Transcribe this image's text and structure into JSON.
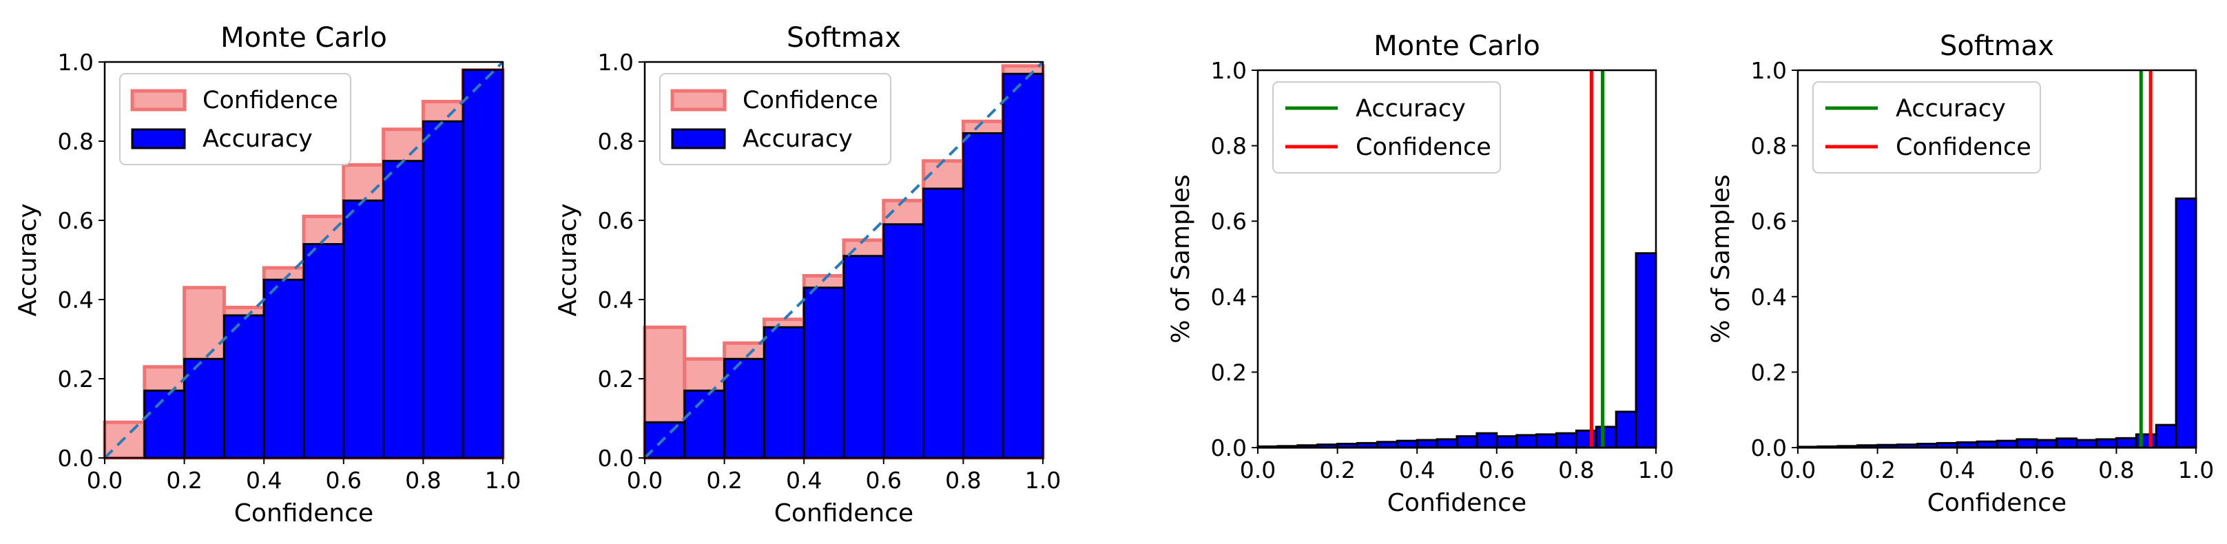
{
  "chart_data": [
    {
      "type": "reliability-diagram",
      "title": "Monte Carlo",
      "xlabel": "Confidence",
      "ylabel": "Accuracy",
      "xlim": [
        0.0,
        1.0
      ],
      "ylim": [
        0.0,
        1.0
      ],
      "xticks": [
        "0.0",
        "0.2",
        "0.4",
        "0.6",
        "0.8",
        "1.0"
      ],
      "yticks": [
        "0.0",
        "0.2",
        "0.4",
        "0.6",
        "0.8",
        "1.0"
      ],
      "bin_edges": [
        0.0,
        0.1,
        0.2,
        0.3,
        0.4,
        0.5,
        0.6,
        0.7,
        0.8,
        0.9,
        1.0
      ],
      "series": [
        {
          "name": "Confidence",
          "color": "#f7a6a6",
          "edge": "#f07474",
          "values": [
            0.09,
            0.23,
            0.43,
            0.38,
            0.48,
            0.61,
            0.74,
            0.83,
            0.9,
            0.98
          ]
        },
        {
          "name": "Accuracy",
          "color": "#0000ff",
          "edge": "#000000",
          "values": [
            0.0,
            0.17,
            0.25,
            0.36,
            0.45,
            0.54,
            0.65,
            0.75,
            0.85,
            0.98
          ]
        }
      ],
      "diagonal": {
        "color": "#2b7bb9",
        "style": "dashed"
      },
      "legend": "top-left"
    },
    {
      "type": "reliability-diagram",
      "title": "Softmax",
      "xlabel": "Confidence",
      "ylabel": "Accuracy",
      "xlim": [
        0.0,
        1.0
      ],
      "ylim": [
        0.0,
        1.0
      ],
      "xticks": [
        "0.0",
        "0.2",
        "0.4",
        "0.6",
        "0.8",
        "1.0"
      ],
      "yticks": [
        "0.0",
        "0.2",
        "0.4",
        "0.6",
        "0.8",
        "1.0"
      ],
      "bin_edges": [
        0.0,
        0.1,
        0.2,
        0.3,
        0.4,
        0.5,
        0.6,
        0.7,
        0.8,
        0.9,
        1.0
      ],
      "series": [
        {
          "name": "Confidence",
          "color": "#f7a6a6",
          "edge": "#f07474",
          "values": [
            0.33,
            0.25,
            0.29,
            0.35,
            0.46,
            0.55,
            0.65,
            0.75,
            0.85,
            0.99
          ]
        },
        {
          "name": "Accuracy",
          "color": "#0000ff",
          "edge": "#000000",
          "values": [
            0.09,
            0.17,
            0.25,
            0.33,
            0.43,
            0.51,
            0.59,
            0.68,
            0.82,
            0.97
          ]
        }
      ],
      "diagonal": {
        "color": "#2b7bb9",
        "style": "dashed"
      },
      "legend": "top-left"
    },
    {
      "type": "histogram",
      "title": "Monte Carlo",
      "xlabel": "Confidence",
      "ylabel": "% of Samples",
      "xlim": [
        0.0,
        1.0
      ],
      "ylim": [
        0.0,
        1.0
      ],
      "xticks": [
        "0.0",
        "0.2",
        "0.4",
        "0.6",
        "0.8",
        "1.0"
      ],
      "yticks": [
        "0.0",
        "0.2",
        "0.4",
        "0.6",
        "0.8",
        "1.0"
      ],
      "bin_edges": [
        0.0,
        0.05,
        0.1,
        0.15,
        0.2,
        0.25,
        0.3,
        0.35,
        0.4,
        0.45,
        0.5,
        0.55,
        0.6,
        0.65,
        0.7,
        0.75,
        0.8,
        0.85,
        0.9,
        0.95,
        1.0
      ],
      "values": [
        0.003,
        0.004,
        0.006,
        0.008,
        0.01,
        0.012,
        0.015,
        0.018,
        0.02,
        0.022,
        0.03,
        0.038,
        0.03,
        0.033,
        0.035,
        0.038,
        0.045,
        0.055,
        0.095,
        0.515
      ],
      "bar_color": "#0000ff",
      "vlines": [
        {
          "name": "Accuracy",
          "color": "#008000",
          "x": 0.866
        },
        {
          "name": "Confidence",
          "color": "#ff0000",
          "x": 0.838
        }
      ],
      "legend": "top-left"
    },
    {
      "type": "histogram",
      "title": "Softmax",
      "xlabel": "Confidence",
      "ylabel": "% of Samples",
      "xlim": [
        0.0,
        1.0
      ],
      "ylim": [
        0.0,
        1.0
      ],
      "xticks": [
        "0.0",
        "0.2",
        "0.4",
        "0.6",
        "0.8",
        "1.0"
      ],
      "yticks": [
        "0.0",
        "0.2",
        "0.4",
        "0.6",
        "0.8",
        "1.0"
      ],
      "bin_edges": [
        0.0,
        0.05,
        0.1,
        0.15,
        0.2,
        0.25,
        0.3,
        0.35,
        0.4,
        0.45,
        0.5,
        0.55,
        0.6,
        0.65,
        0.7,
        0.75,
        0.8,
        0.85,
        0.9,
        0.95,
        1.0
      ],
      "values": [
        0.002,
        0.003,
        0.004,
        0.006,
        0.007,
        0.008,
        0.01,
        0.012,
        0.014,
        0.016,
        0.018,
        0.022,
        0.02,
        0.024,
        0.02,
        0.022,
        0.025,
        0.035,
        0.06,
        0.66
      ],
      "bar_color": "#0000ff",
      "vlines": [
        {
          "name": "Accuracy",
          "color": "#008000",
          "x": 0.862
        },
        {
          "name": "Confidence",
          "color": "#ff0000",
          "x": 0.886
        }
      ],
      "legend": "top-left"
    }
  ]
}
